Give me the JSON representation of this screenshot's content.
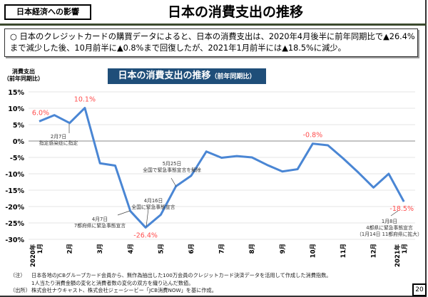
{
  "header": {
    "section_tag": "日本経済への影響",
    "title": "日本の消費支出の推移"
  },
  "summary": {
    "bullet": "○",
    "text": "日本のクレジットカードの購買データによると、日本の消費支出は、2020年4月後半に前年同期比で▲26.4%まで減少した後、10月前半に▲0.8%まで回復したが、2021年1月前半には▲18.5%に減少。"
  },
  "chart_data": {
    "type": "line",
    "title": "日本の消費支出の推移",
    "title_suffix": "（前年同期比）",
    "ylabel_line1": "消費支出",
    "ylabel_line2": "（前年同期比）",
    "ylim": [
      -30,
      15
    ],
    "yticks": [
      "15%",
      "10%",
      "5%",
      "0%",
      "-5%",
      "-10%",
      "-15%",
      "-20%",
      "-25%",
      "-30%"
    ],
    "ytick_values": [
      15,
      10,
      5,
      0,
      -5,
      -10,
      -15,
      -20,
      -25,
      -30
    ],
    "grid": true,
    "month_labels": [
      [
        "2020年",
        "1月"
      ],
      [
        "2月"
      ],
      [
        "3月"
      ],
      [
        "4月"
      ],
      [
        "5月"
      ],
      [
        "6月"
      ],
      [
        "7月"
      ],
      [
        "8月"
      ],
      [
        "9月"
      ],
      [
        "10月"
      ],
      [
        "11月"
      ],
      [
        "12月"
      ],
      [
        "2021年",
        "1月"
      ]
    ],
    "series": [
      {
        "color": "#4a86d4",
        "values": [
          6.0,
          7.9,
          5.5,
          10.1,
          -6.8,
          -7.5,
          -21.4,
          -26.4,
          -22.5,
          -13.8,
          -10.6,
          -3.2,
          -5.1,
          -4.6,
          -5.0,
          -7.3,
          -9.3,
          -8.6,
          -0.8,
          -1.3,
          -5.3,
          -9.6,
          -14.2,
          -10.0,
          -18.5
        ]
      }
    ],
    "data_labels": [
      {
        "index": 0,
        "text": "6.0%"
      },
      {
        "index": 3,
        "text": "10.1%"
      },
      {
        "index": 7,
        "text": "-26.4%"
      },
      {
        "index": 18,
        "text": "-0.8%"
      },
      {
        "index": 24,
        "text": "-18.5%"
      }
    ],
    "data_label_color": "#ff4d4d",
    "annotations": [
      {
        "index": 2,
        "lines": [
          "2月7日",
          "指定感染症に指定"
        ]
      },
      {
        "index": 6,
        "lines": [
          "4月7日",
          "7都府県に緊急事態宣言"
        ]
      },
      {
        "index": 7,
        "lines": [
          "4月16日",
          "全国に緊急事態宣言"
        ]
      },
      {
        "index": 9,
        "lines": [
          "5月25日",
          "全国で緊急事態宣言を解除"
        ]
      },
      {
        "index": 24,
        "lines": [
          "1月8日",
          "4都県に緊急事態宣言",
          "（1月14日 11都府県に拡大）"
        ]
      }
    ]
  },
  "notes": [
    {
      "key": "（注）",
      "text": "日本各地のJCBグループカード会員から、無作為抽出した100万会員のクレジットカード決済データを活用して作成した消費指数。"
    },
    {
      "key": "",
      "text": "1人当たり消費金額の変化と消費者数の変化の双方を織り込んだ数値。"
    },
    {
      "key": "（出所）",
      "text": "株式会社ナウキャスト、株式会社ジェーシービー「JCB消費NOW」を基に作成。"
    }
  ],
  "page_number": "20"
}
